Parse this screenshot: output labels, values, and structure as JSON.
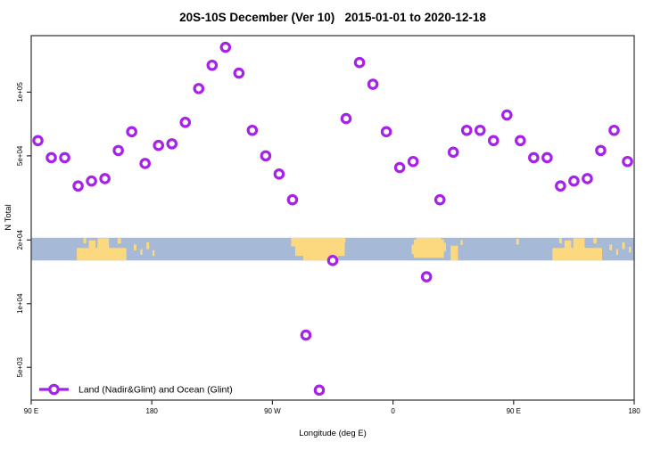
{
  "title": "20S-10S December (Ver 10)   2015-01-01 to 2020-12-18",
  "colors": {
    "marker": "#A722E8",
    "ocean": "#A6BAD8",
    "land": "#FCD97F",
    "axis": "#2E2E2E",
    "background": "#FFFFFF"
  },
  "legend": {
    "label": "Land (Nadir&Glint) and Ocean (Glint)",
    "position": "bottom-left",
    "marker": "open-circle-on-line"
  },
  "chart_data": {
    "type": "scatter",
    "title": "20S-10S December (Ver 10)   2015-01-01 to 2020-12-18",
    "xlabel": "Longitude (deg E)",
    "ylabel": "N Total",
    "x_scale": "linear (longitude wrapping 90E eastward to 180, 450 deg span)",
    "y_scale": "log10",
    "xlim": [
      90,
      540
    ],
    "ylim": [
      3500,
      185000
    ],
    "grid": false,
    "x_ticks": {
      "values": [
        90,
        180,
        270,
        360,
        450,
        540
      ],
      "labels": [
        "90 E",
        "180",
        "90 W",
        "0",
        "90 E",
        "180"
      ]
    },
    "y_ticks": {
      "values": [
        100000,
        50000,
        20000,
        10000,
        5000
      ],
      "labels": [
        "1e+05",
        "5e+04",
        "2e+04",
        "1e+04",
        "5e+03"
      ]
    },
    "marker": {
      "shape": "open-circle",
      "color": "#A722E8",
      "radius_px": 4.7,
      "stroke_px": 3.2
    },
    "series": [
      {
        "name": "Land (Nadir&Glint) and Ocean (Glint)",
        "x": [
          95,
          105,
          115,
          125,
          135,
          145,
          155,
          165,
          175,
          185,
          195,
          205,
          215,
          225,
          235,
          245,
          255,
          265,
          275,
          285,
          295,
          305,
          315,
          325,
          335,
          345,
          355,
          365,
          375,
          385,
          395,
          405,
          415,
          425,
          435,
          445,
          455,
          465,
          475,
          485,
          495,
          505,
          515,
          525,
          535
        ],
        "y": [
          59000,
          49000,
          49000,
          36000,
          38000,
          39000,
          53000,
          65000,
          46000,
          56000,
          57000,
          72000,
          104000,
          134000,
          163000,
          123000,
          66000,
          50000,
          41000,
          31000,
          7100,
          3900,
          16000,
          75000,
          138000,
          109000,
          65000,
          44000,
          47000,
          13400,
          31000,
          52000,
          66000,
          66000,
          59000,
          78000,
          59000,
          49000,
          49000,
          36000,
          38000,
          39000,
          53000,
          66000,
          47000
        ]
      }
    ],
    "map_band": {
      "description": "World-map strip of the 20S-10S latitude band drawn across the plot",
      "y_top": 20500,
      "y_bottom": 16000,
      "ocean_color": "#A6BAD8",
      "land_color": "#FCD97F",
      "land_rects": [
        {
          "x0": 124,
          "x1": 161,
          "f0": 0.45,
          "f1": 1.0
        },
        {
          "x0": 133,
          "x1": 138,
          "f0": 0.12,
          "f1": 0.48
        },
        {
          "x0": 139.5,
          "x1": 148,
          "f0": 0.02,
          "f1": 0.48
        },
        {
          "x0": 129,
          "x1": 131,
          "f0": 0.02,
          "f1": 0.25
        },
        {
          "x0": 154.5,
          "x1": 157,
          "f0": 0.02,
          "f1": 0.25
        },
        {
          "x0": 166.5,
          "x1": 168.5,
          "f0": 0.3,
          "f1": 0.55
        },
        {
          "x0": 171.5,
          "x1": 173,
          "f0": 0.5,
          "f1": 0.75
        },
        {
          "x0": 176,
          "x1": 178,
          "f0": 0.2,
          "f1": 0.5
        },
        {
          "x0": 180.5,
          "x1": 182,
          "f0": 0.55,
          "f1": 0.8
        },
        {
          "x0": 287,
          "x1": 324,
          "f0": 0.0,
          "f1": 0.8
        },
        {
          "x0": 284,
          "x1": 287,
          "f0": 0.0,
          "f1": 0.38
        },
        {
          "x0": 293,
          "x1": 319,
          "f0": 0.78,
          "f1": 1.0
        },
        {
          "x0": 322.5,
          "x1": 324.5,
          "f0": 0.0,
          "f1": 0.2
        },
        {
          "x0": 375.5,
          "x1": 398,
          "f0": 0.08,
          "f1": 0.88
        },
        {
          "x0": 377.5,
          "x1": 396,
          "f0": 0.0,
          "f1": 0.1
        },
        {
          "x0": 374,
          "x1": 376,
          "f0": 0.3,
          "f1": 0.72
        },
        {
          "x0": 398,
          "x1": 399.5,
          "f0": 0.22,
          "f1": 0.6
        },
        {
          "x0": 403,
          "x1": 408.5,
          "f0": 0.35,
          "f1": 1.0
        },
        {
          "x0": 410.5,
          "x1": 412,
          "f0": 0.1,
          "f1": 0.32
        },
        {
          "x0": 452,
          "x1": 454,
          "f0": 0.05,
          "f1": 0.3
        },
        {
          "x0": 479,
          "x1": 516,
          "f0": 0.45,
          "f1": 1.0
        },
        {
          "x0": 488,
          "x1": 493,
          "f0": 0.12,
          "f1": 0.48
        },
        {
          "x0": 494.5,
          "x1": 503,
          "f0": 0.02,
          "f1": 0.48
        },
        {
          "x0": 484,
          "x1": 486,
          "f0": 0.02,
          "f1": 0.25
        },
        {
          "x0": 509.5,
          "x1": 512,
          "f0": 0.02,
          "f1": 0.25
        },
        {
          "x0": 521.5,
          "x1": 523.5,
          "f0": 0.3,
          "f1": 0.55
        },
        {
          "x0": 526.5,
          "x1": 528,
          "f0": 0.5,
          "f1": 0.75
        },
        {
          "x0": 531,
          "x1": 533,
          "f0": 0.2,
          "f1": 0.5
        },
        {
          "x0": 536,
          "x1": 537.5,
          "f0": 0.4,
          "f1": 0.65
        }
      ]
    },
    "legend": {
      "label": "Land (Nadir&Glint) and Ocean (Glint)",
      "position": "bottom-left"
    }
  }
}
